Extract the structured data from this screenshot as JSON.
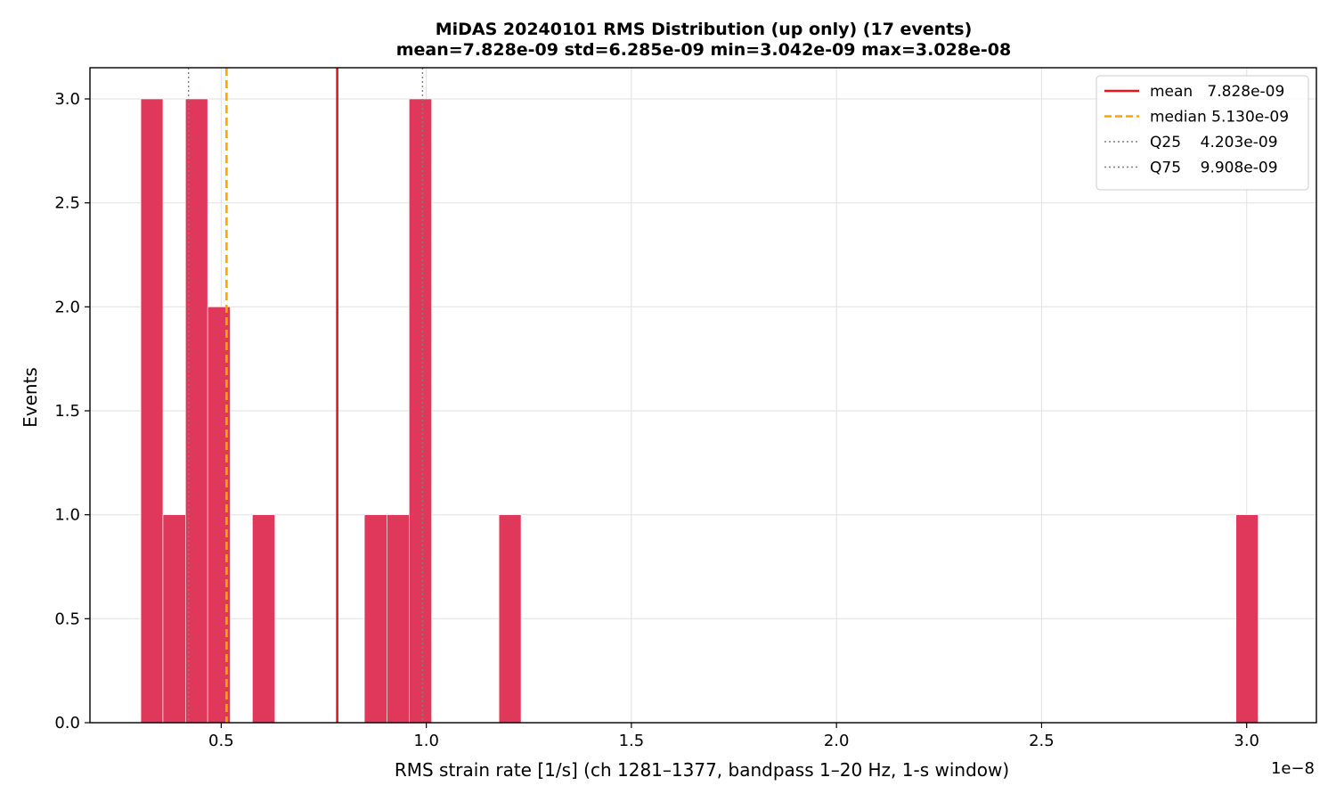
{
  "chart_data": {
    "type": "histogram",
    "title": "MiDAS 20240101  RMS Distribution  (up only)  (17 events)",
    "subtitle": "mean=7.828e-09  std=6.285e-09  min=3.042e-09  max=3.028e-08",
    "xlabel": "RMS strain rate [1/s]  (ch 1281–1377, bandpass 1–20 Hz, 1-s window)",
    "ylabel": "Events",
    "x_scale_label": "1e−8",
    "xlim": [
      0.18,
      3.17
    ],
    "ylim": [
      0,
      3.15
    ],
    "x_ticks": [
      0.5,
      1.0,
      1.5,
      2.0,
      2.5,
      3.0
    ],
    "x_tick_labels": [
      "0.5",
      "1.0",
      "1.5",
      "2.0",
      "2.5",
      "3.0"
    ],
    "y_ticks": [
      0.0,
      0.5,
      1.0,
      1.5,
      2.0,
      2.5,
      3.0
    ],
    "y_tick_labels": [
      "0.0",
      "0.5",
      "1.0",
      "1.5",
      "2.0",
      "2.5",
      "3.0"
    ],
    "grid": true,
    "bar_color": "#e0385a",
    "bins": [
      {
        "x0": 0.304,
        "x1": 0.358,
        "count": 3
      },
      {
        "x0": 0.358,
        "x1": 0.413,
        "count": 1
      },
      {
        "x0": 0.413,
        "x1": 0.467,
        "count": 3
      },
      {
        "x0": 0.467,
        "x1": 0.522,
        "count": 2
      },
      {
        "x0": 0.576,
        "x1": 0.631,
        "count": 1
      },
      {
        "x0": 0.849,
        "x1": 0.904,
        "count": 1
      },
      {
        "x0": 0.904,
        "x1": 0.958,
        "count": 1
      },
      {
        "x0": 0.958,
        "x1": 1.013,
        "count": 3
      },
      {
        "x0": 1.177,
        "x1": 1.231,
        "count": 1
      },
      {
        "x0": 2.974,
        "x1": 3.028,
        "count": 1
      }
    ],
    "reference_lines": [
      {
        "name": "mean",
        "label": "mean   7.828e-09",
        "value": 0.7828,
        "color": "#e8141c",
        "style": "solid"
      },
      {
        "name": "median",
        "label": "median 5.130e-09",
        "value": 0.513,
        "color": "#ffa500",
        "style": "dashed"
      },
      {
        "name": "q25",
        "label": "Q25    4.203e-09",
        "value": 0.4203,
        "color": "#808080",
        "style": "dotted"
      },
      {
        "name": "q75",
        "label": "Q75    9.908e-09",
        "value": 0.9908,
        "color": "#808080",
        "style": "dotted"
      }
    ],
    "legend_position": "top-right"
  }
}
